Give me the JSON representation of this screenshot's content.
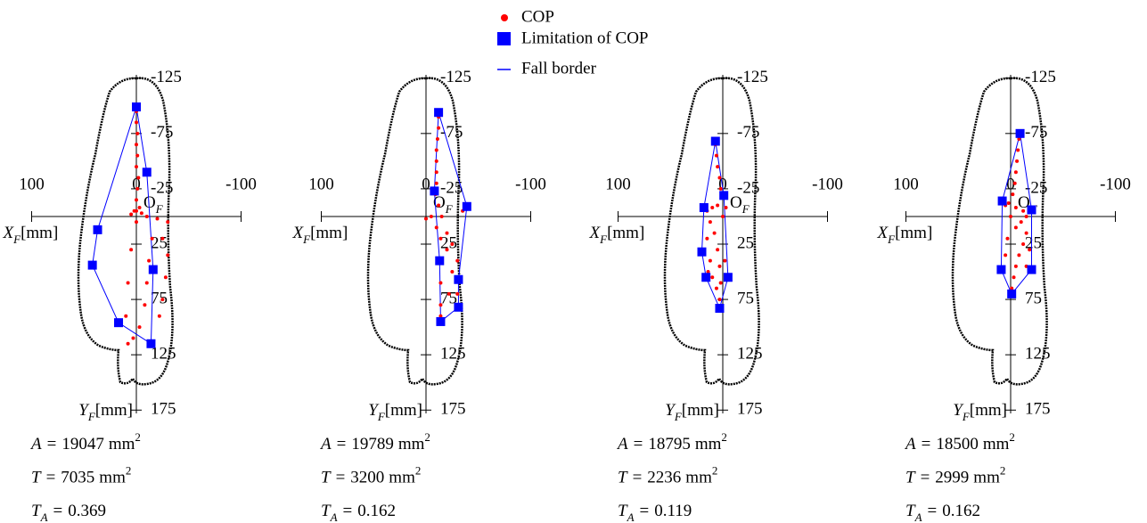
{
  "legend": [
    {
      "name": "COP",
      "color": "#ff0000"
    },
    {
      "name": "Limitation of COP",
      "color": "#0000ff"
    },
    {
      "name": "Fall border",
      "color": "#0000ff"
    }
  ],
  "axis_labels": {
    "x": {
      "symbol": "X",
      "sub": "F",
      "unit": "[mm]"
    },
    "y": {
      "symbol": "Y",
      "sub": "F",
      "unit": "[mm]"
    },
    "origin": {
      "symbol": "O",
      "sub": "F"
    }
  },
  "equals": "=",
  "chart_data": [
    {
      "type": "scatter",
      "xlim": [
        100,
        -100
      ],
      "ylim": [
        -128,
        178
      ],
      "xticks": [
        100,
        0,
        -100
      ],
      "yticks": [
        -125,
        -75,
        -25,
        25,
        75,
        125,
        175
      ],
      "cop": {
        "x": [
          0,
          0,
          -1,
          0,
          -1,
          0,
          -2,
          -1,
          0,
          -3,
          2,
          -5,
          -10,
          -20,
          -30,
          5,
          0,
          -25,
          -30,
          -28,
          -25,
          -22,
          -15,
          -12,
          -10,
          -8,
          -3,
          3,
          8,
          5,
          8,
          10,
          0
        ],
        "y": [
          -95,
          -85,
          -75,
          -65,
          -55,
          -45,
          -35,
          -25,
          -15,
          -8,
          -5,
          -3,
          0,
          2,
          5,
          -2,
          5,
          20,
          35,
          55,
          75,
          90,
          20,
          40,
          60,
          80,
          100,
          110,
          115,
          30,
          60,
          90,
          -5
        ]
      },
      "limitation": {
        "x": [
          0,
          -10,
          -16,
          -14,
          17,
          42,
          37
        ],
        "y": [
          -99,
          -40,
          48,
          115,
          96,
          44,
          12
        ]
      },
      "stats": [
        {
          "symbol": "A",
          "value": 19047,
          "unit": "mm",
          "exp": "2"
        },
        {
          "symbol": "T",
          "value": 7035,
          "unit": "mm",
          "exp": "2"
        },
        {
          "symbol": "T",
          "sub": "A",
          "value": 0.369
        }
      ]
    },
    {
      "type": "scatter",
      "xlim": [
        100,
        -100
      ],
      "ylim": [
        -128,
        178
      ],
      "xticks": [
        100,
        0,
        -100
      ],
      "yticks": [
        -125,
        -75,
        -25,
        25,
        75,
        125,
        175
      ],
      "cop": {
        "x": [
          -12,
          -12,
          -11,
          -10,
          -10,
          -10,
          -10,
          -9,
          -12,
          -15,
          -10,
          -20,
          -25,
          -30,
          -30,
          -30,
          -30,
          -14,
          -15,
          -14,
          -14,
          -14,
          -20,
          -25,
          -22,
          -35,
          -5,
          0
        ],
        "y": [
          -90,
          -80,
          -70,
          -60,
          -50,
          -40,
          -30,
          -20,
          -10,
          0,
          10,
          15,
          25,
          40,
          55,
          70,
          80,
          20,
          40,
          60,
          80,
          90,
          30,
          50,
          70,
          -5,
          0,
          2
        ]
      },
      "limitation": {
        "x": [
          -12,
          -39,
          -31,
          -31,
          -14,
          -13,
          -8
        ],
        "y": [
          -94,
          -9,
          57,
          82,
          95,
          40,
          -23
        ]
      },
      "stats": [
        {
          "symbol": "A",
          "value": 19789,
          "unit": "mm",
          "exp": "2"
        },
        {
          "symbol": "T",
          "value": 3200,
          "unit": "mm",
          "exp": "2"
        },
        {
          "symbol": "T",
          "sub": "A",
          "value": 0.162
        }
      ]
    },
    {
      "type": "scatter",
      "xlim": [
        100,
        -100
      ],
      "ylim": [
        -128,
        178
      ],
      "xticks": [
        100,
        0,
        -100
      ],
      "yticks": [
        -125,
        -75,
        -25,
        25,
        75,
        125,
        175
      ],
      "cop": {
        "x": [
          7,
          6,
          5,
          3,
          2,
          0,
          5,
          10,
          15,
          -3,
          12,
          15,
          18,
          12,
          10,
          14,
          5,
          3,
          2,
          3,
          -2,
          -3,
          8,
          0,
          6
        ],
        "y": [
          -65,
          -55,
          -45,
          -35,
          -25,
          -18,
          -10,
          -8,
          -5,
          -8,
          5,
          20,
          30,
          40,
          55,
          50,
          30,
          45,
          60,
          75,
          40,
          55,
          15,
          0,
          65
        ]
      },
      "limitation": {
        "x": [
          7,
          -1,
          -5,
          3,
          16,
          20,
          18
        ],
        "y": [
          -68,
          -19,
          55,
          83,
          55,
          32,
          -8
        ]
      },
      "stats": [
        {
          "symbol": "A",
          "value": 18795,
          "unit": "mm",
          "exp": "2"
        },
        {
          "symbol": "T",
          "value": 2236,
          "unit": "mm",
          "exp": "2"
        },
        {
          "symbol": "T",
          "sub": "A",
          "value": 0.119
        }
      ]
    },
    {
      "type": "scatter",
      "xlim": [
        100,
        -100
      ],
      "ylim": [
        -128,
        178
      ],
      "xticks": [
        100,
        0,
        -100
      ],
      "yticks": [
        -125,
        -75,
        -25,
        25,
        75,
        125,
        175
      ],
      "cop": {
        "x": [
          -8,
          -7,
          -6,
          -5,
          -4,
          -2,
          2,
          5,
          -5,
          -12,
          -15,
          -10,
          -5,
          -15,
          -12,
          -8,
          -5,
          -3,
          -1,
          3,
          5,
          -18,
          -15,
          0
        ],
        "y": [
          -70,
          -60,
          -50,
          -40,
          -30,
          -20,
          -12,
          -10,
          -8,
          -5,
          0,
          5,
          10,
          15,
          25,
          35,
          45,
          55,
          65,
          20,
          35,
          30,
          45,
          0
        ]
      },
      "limitation": {
        "x": [
          -9,
          -20,
          -20,
          -1,
          9,
          8
        ],
        "y": [
          -75,
          -6,
          48,
          70,
          48,
          -14
        ]
      },
      "stats": [
        {
          "symbol": "A",
          "value": 18500,
          "unit": "mm",
          "exp": "2"
        },
        {
          "symbol": "T",
          "value": 2999,
          "unit": "mm",
          "exp": "2"
        },
        {
          "symbol": "T",
          "sub": "A",
          "value": 0.162
        }
      ]
    }
  ]
}
